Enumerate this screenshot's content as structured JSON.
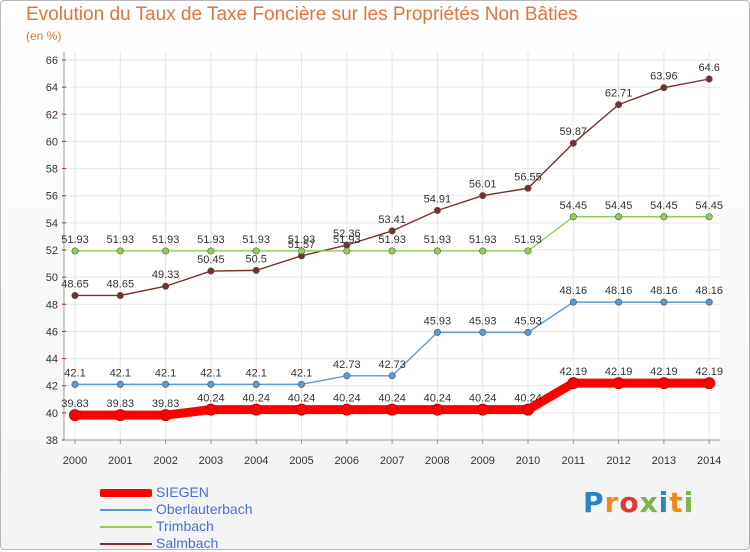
{
  "header": {
    "title": "Evolution du Taux de Taxe Foncière sur les Propriétés Non Bâties",
    "unit": "(en %)"
  },
  "logo": {
    "text": "Proxiti",
    "letter_colors": [
      "#2a84c6",
      "#f08a1c",
      "#e03a2f",
      "#7ab648",
      "#2a84c6",
      "#f08a1c",
      "#7ab648"
    ]
  },
  "chart_data": {
    "type": "line",
    "title": "Evolution du Taux de Taxe Foncière sur les Propriétés Non Bâties",
    "ylabel": "(en %)",
    "xlabel": "",
    "ylim": [
      38,
      66
    ],
    "yticks": [
      38,
      40,
      42,
      44,
      46,
      48,
      50,
      52,
      54,
      56,
      58,
      60,
      62,
      64,
      66
    ],
    "grid": true,
    "legend_position": "bottom-left",
    "x": [
      2000,
      2001,
      2002,
      2003,
      2004,
      2005,
      2006,
      2007,
      2008,
      2009,
      2010,
      2011,
      2012,
      2013,
      2014
    ],
    "series": [
      {
        "name": "Salmbach",
        "color": "#7a2e2e",
        "labels": [
          "48.65",
          "48.65",
          "49.33",
          "50.45",
          "50.5",
          "51.57",
          "52.36",
          "53.41",
          "54.91",
          "56.01",
          "56.55",
          "59.87",
          "62.71",
          "63.96",
          "64.6"
        ],
        "values": [
          48.65,
          48.65,
          49.33,
          50.45,
          50.5,
          51.57,
          52.36,
          53.41,
          54.91,
          56.01,
          56.55,
          59.87,
          62.71,
          63.96,
          64.6
        ]
      },
      {
        "name": "Trimbach",
        "color": "#8fd14f",
        "labels": [
          "51.93",
          "51.93",
          "51.93",
          "51.93",
          "51.93",
          "51.93",
          "51.93",
          "51.93",
          "51.93",
          "51.93",
          "51.93",
          "54.45",
          "54.45",
          "54.45",
          "54.45"
        ],
        "values": [
          51.93,
          51.93,
          51.93,
          51.93,
          51.93,
          51.93,
          51.93,
          51.93,
          51.93,
          51.93,
          51.93,
          54.45,
          54.45,
          54.45,
          54.45
        ]
      },
      {
        "name": "Oberlauterbach",
        "color": "#5b9bd5",
        "labels": [
          "42.1",
          "42.1",
          "42.1",
          "42.1",
          "42.1",
          "42.1",
          "42.73",
          "42.73",
          "45.93",
          "45.93",
          "45.93",
          "48.16",
          "48.16",
          "48.16",
          "48.16"
        ],
        "values": [
          42.1,
          42.1,
          42.1,
          42.1,
          42.1,
          42.1,
          42.73,
          42.73,
          45.93,
          45.93,
          45.93,
          48.16,
          48.16,
          48.16,
          48.16
        ]
      },
      {
        "name": "SIEGEN",
        "color": "#ff0000",
        "labels": [
          "39.83",
          "39.83",
          "39.83",
          "40.24",
          "40.24",
          "40.24",
          "40.24",
          "40.24",
          "40.24",
          "40.24",
          "40.24",
          "42.19",
          "42.19",
          "42.19",
          "42.19"
        ],
        "values": [
          39.83,
          39.83,
          39.83,
          40.24,
          40.24,
          40.24,
          40.24,
          40.24,
          40.24,
          40.24,
          40.24,
          42.19,
          42.19,
          42.19,
          42.19
        ]
      }
    ]
  },
  "legend": [
    {
      "label": "SIEGEN",
      "color": "#ff0000"
    },
    {
      "label": "Oberlauterbach",
      "color": "#5b9bd5"
    },
    {
      "label": "Trimbach",
      "color": "#8fd14f"
    },
    {
      "label": "Salmbach",
      "color": "#7a2e2e"
    }
  ]
}
